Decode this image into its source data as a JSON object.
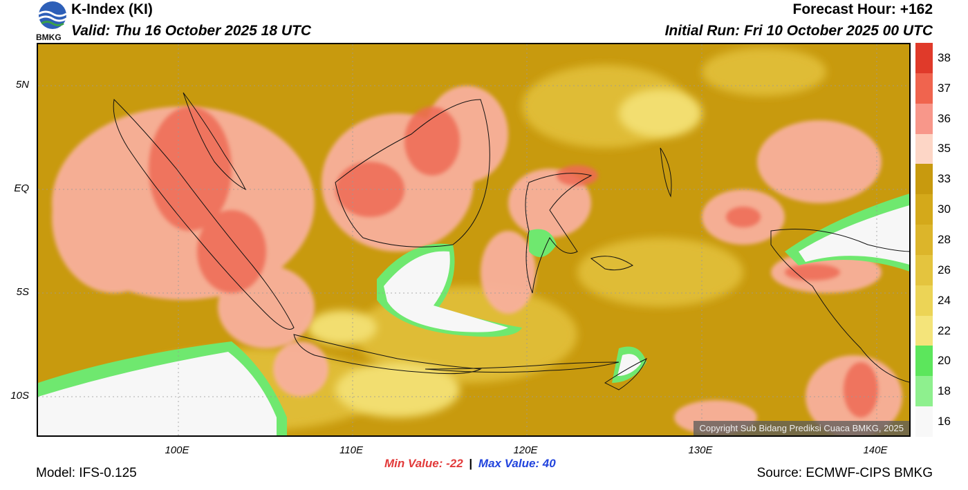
{
  "header": {
    "title": "K-Index (KI)",
    "valid": "Valid: Thu 16 October 2025 18 UTC",
    "forecast_hour": "Forecast Hour: +162",
    "initial_run": "Initial Run: Fri 10 October 2025 00 UTC",
    "logo_text": "BMKG"
  },
  "map": {
    "lat_labels": [
      "5N",
      "EQ",
      "5S",
      "10S"
    ],
    "lon_labels": [
      "100E",
      "110E",
      "120E",
      "130E",
      "140E"
    ],
    "copyright": "Copyright Sub Bidang Prediksi Cuaca BMKG, 2025"
  },
  "colorbar": {
    "labels": [
      "38",
      "37",
      "36",
      "35",
      "33",
      "30",
      "28",
      "26",
      "24",
      "22",
      "20",
      "18",
      "16"
    ],
    "colors": [
      "#e03a2a",
      "#f0644e",
      "#f8978a",
      "#fdd6c6",
      "#c89a0e",
      "#d4a91a",
      "#dcb52a",
      "#e4c43e",
      "#ecd456",
      "#f4e47a",
      "#5ce65c",
      "#8ef08e",
      "#f8f8f8"
    ]
  },
  "stats": {
    "min_label": "Min Value: -22",
    "separator": "|",
    "max_label": "Max Value:  40"
  },
  "footer": {
    "model": "Model: IFS-0.125",
    "source": "Source: ECMWF-CIPS BMKG"
  }
}
